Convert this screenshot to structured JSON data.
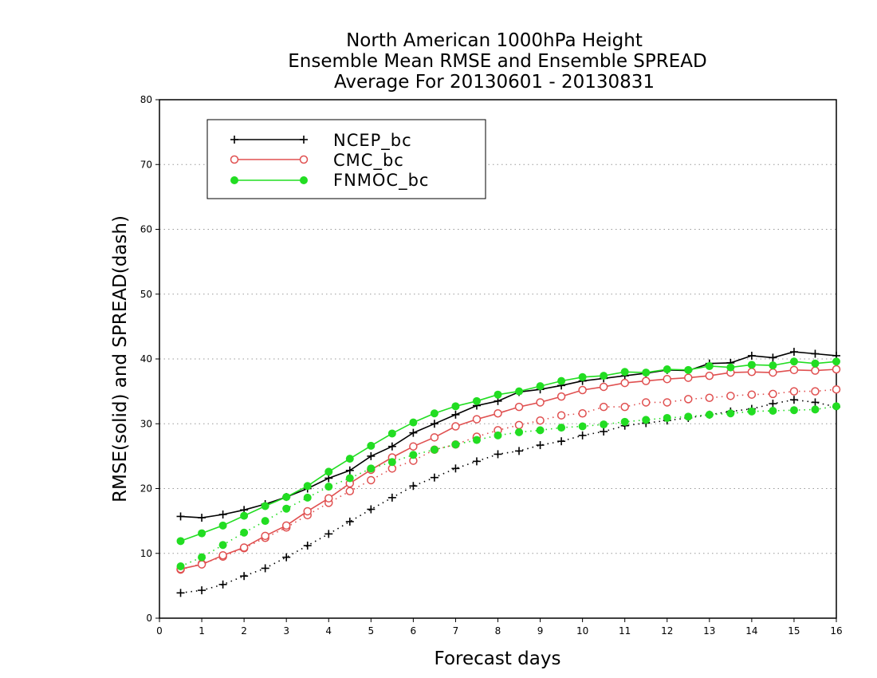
{
  "chart_data": {
    "type": "line",
    "title": [
      "North American 1000hPa Height",
      "Ensemble Mean RMSE and Ensemble SPREAD",
      "Average For 20130601 - 20130831"
    ],
    "xlabel": "Forecast days",
    "ylabel": "RMSE(solid) and SPREAD(dash)",
    "xlim": [
      0,
      16
    ],
    "ylim": [
      0,
      80
    ],
    "xticks": [
      "0",
      "1",
      "2",
      "3",
      "4",
      "5",
      "6",
      "7",
      "8",
      "9",
      "10",
      "11",
      "12",
      "13",
      "14",
      "15",
      "16"
    ],
    "yticks": [
      "0",
      "10",
      "20",
      "30",
      "40",
      "50",
      "60",
      "70",
      "80"
    ],
    "grid": "horizontal dotted",
    "legend_position": "top-left",
    "x": [
      0.5,
      1,
      1.5,
      2,
      2.5,
      3,
      3.5,
      4,
      4.5,
      5,
      5.5,
      6,
      6.5,
      7,
      7.5,
      8,
      8.5,
      9,
      9.5,
      10,
      10.5,
      11,
      11.5,
      12,
      12.5,
      13,
      13.5,
      14,
      14.5,
      15,
      15.5,
      16
    ],
    "series": [
      {
        "name": "NCEP_bc",
        "color": "#000000",
        "marker": "plus",
        "rmse": [
          15.7,
          15.5,
          16.0,
          16.7,
          17.6,
          18.7,
          20.0,
          21.6,
          22.8,
          25.0,
          26.5,
          28.6,
          30.0,
          31.4,
          32.8,
          33.5,
          34.9,
          35.3,
          35.9,
          36.6,
          37.0,
          37.4,
          37.8,
          38.3,
          38.2,
          39.3,
          39.4,
          40.5,
          40.2,
          41.1,
          40.8,
          40.5
        ],
        "spread": [
          3.9,
          4.3,
          5.2,
          6.5,
          7.7,
          9.4,
          11.2,
          13.0,
          14.9,
          16.8,
          18.6,
          20.4,
          21.7,
          23.1,
          24.2,
          25.3,
          25.8,
          26.7,
          27.3,
          28.2,
          28.8,
          29.7,
          30.1,
          30.5,
          30.9,
          31.4,
          31.9,
          32.3,
          33.1,
          33.7,
          33.3,
          32.6
        ]
      },
      {
        "name": "CMC_bc",
        "color": "#e05050",
        "marker": "open-circle",
        "rmse": [
          7.6,
          8.3,
          9.7,
          10.9,
          12.7,
          14.3,
          16.5,
          18.5,
          20.8,
          22.9,
          24.8,
          26.5,
          27.9,
          29.6,
          30.7,
          31.6,
          32.6,
          33.3,
          34.2,
          35.2,
          35.7,
          36.3,
          36.6,
          36.9,
          37.1,
          37.4,
          37.9,
          38.0,
          37.9,
          38.3,
          38.2,
          38.4
        ],
        "spread": [
          7.5,
          8.4,
          9.5,
          10.8,
          12.4,
          14.0,
          15.9,
          17.8,
          19.6,
          21.3,
          23.1,
          24.3,
          26.0,
          26.8,
          28.0,
          29.0,
          29.8,
          30.5,
          31.3,
          31.6,
          32.6,
          32.6,
          33.3,
          33.3,
          33.8,
          34.0,
          34.3,
          34.5,
          34.6,
          35.0,
          35.0,
          35.3
        ]
      },
      {
        "name": "FNMOC_bc",
        "color": "#22dd22",
        "marker": "filled-circle",
        "rmse": [
          11.9,
          13.1,
          14.3,
          15.8,
          17.3,
          18.7,
          20.4,
          22.6,
          24.6,
          26.6,
          28.5,
          30.2,
          31.6,
          32.7,
          33.5,
          34.5,
          35.0,
          35.8,
          36.6,
          37.2,
          37.4,
          38.0,
          37.9,
          38.4,
          38.3,
          38.9,
          38.7,
          39.1,
          39.0,
          39.6,
          39.3,
          39.6
        ],
        "spread": [
          8.0,
          9.4,
          11.3,
          13.2,
          15.0,
          16.9,
          18.6,
          20.3,
          21.6,
          23.1,
          24.1,
          25.2,
          26.0,
          26.8,
          27.5,
          28.2,
          28.7,
          29.0,
          29.4,
          29.6,
          29.9,
          30.3,
          30.6,
          30.9,
          31.1,
          31.4,
          31.6,
          31.9,
          32.0,
          32.1,
          32.2,
          32.7
        ]
      }
    ]
  }
}
